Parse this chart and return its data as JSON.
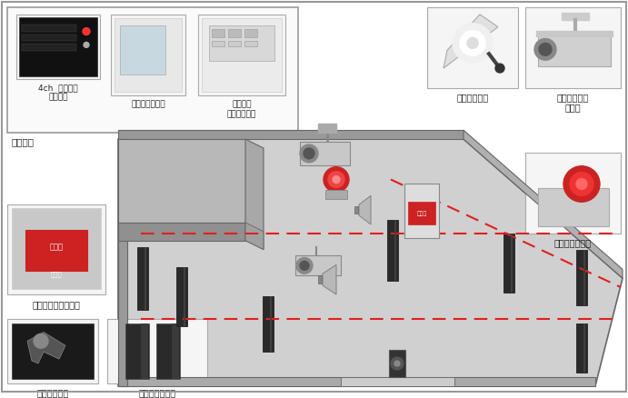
{
  "bg_color": "#ffffff",
  "img_border": "#aaaaaa",
  "floor_color": "#d4d4d4",
  "wall_top_color": "#b0b0b0",
  "wall_right_color": "#c0c0c0",
  "office_color": "#c8c8c8",
  "office_wall_color": "#a0a0a0",
  "outline_color": "#666666",
  "dashed_color": "#e02020",
  "pole_color": "#2a2a2a",
  "labels": {
    "recorder": "4ch  デジタル\nレコーダ",
    "power_supply": "警備用電源装置",
    "controller": "遠隔監視\nコントローラ",
    "office": "事務所内",
    "power_light": "パワーライト",
    "ir_camera": "赤外線照射付\nカメラ",
    "voice_siren": "音声合成回転灯",
    "flash_siren": "フラッシュサイレン",
    "key_switch": "キースイッチ",
    "ir_sensor": "赤外線センサー"
  }
}
